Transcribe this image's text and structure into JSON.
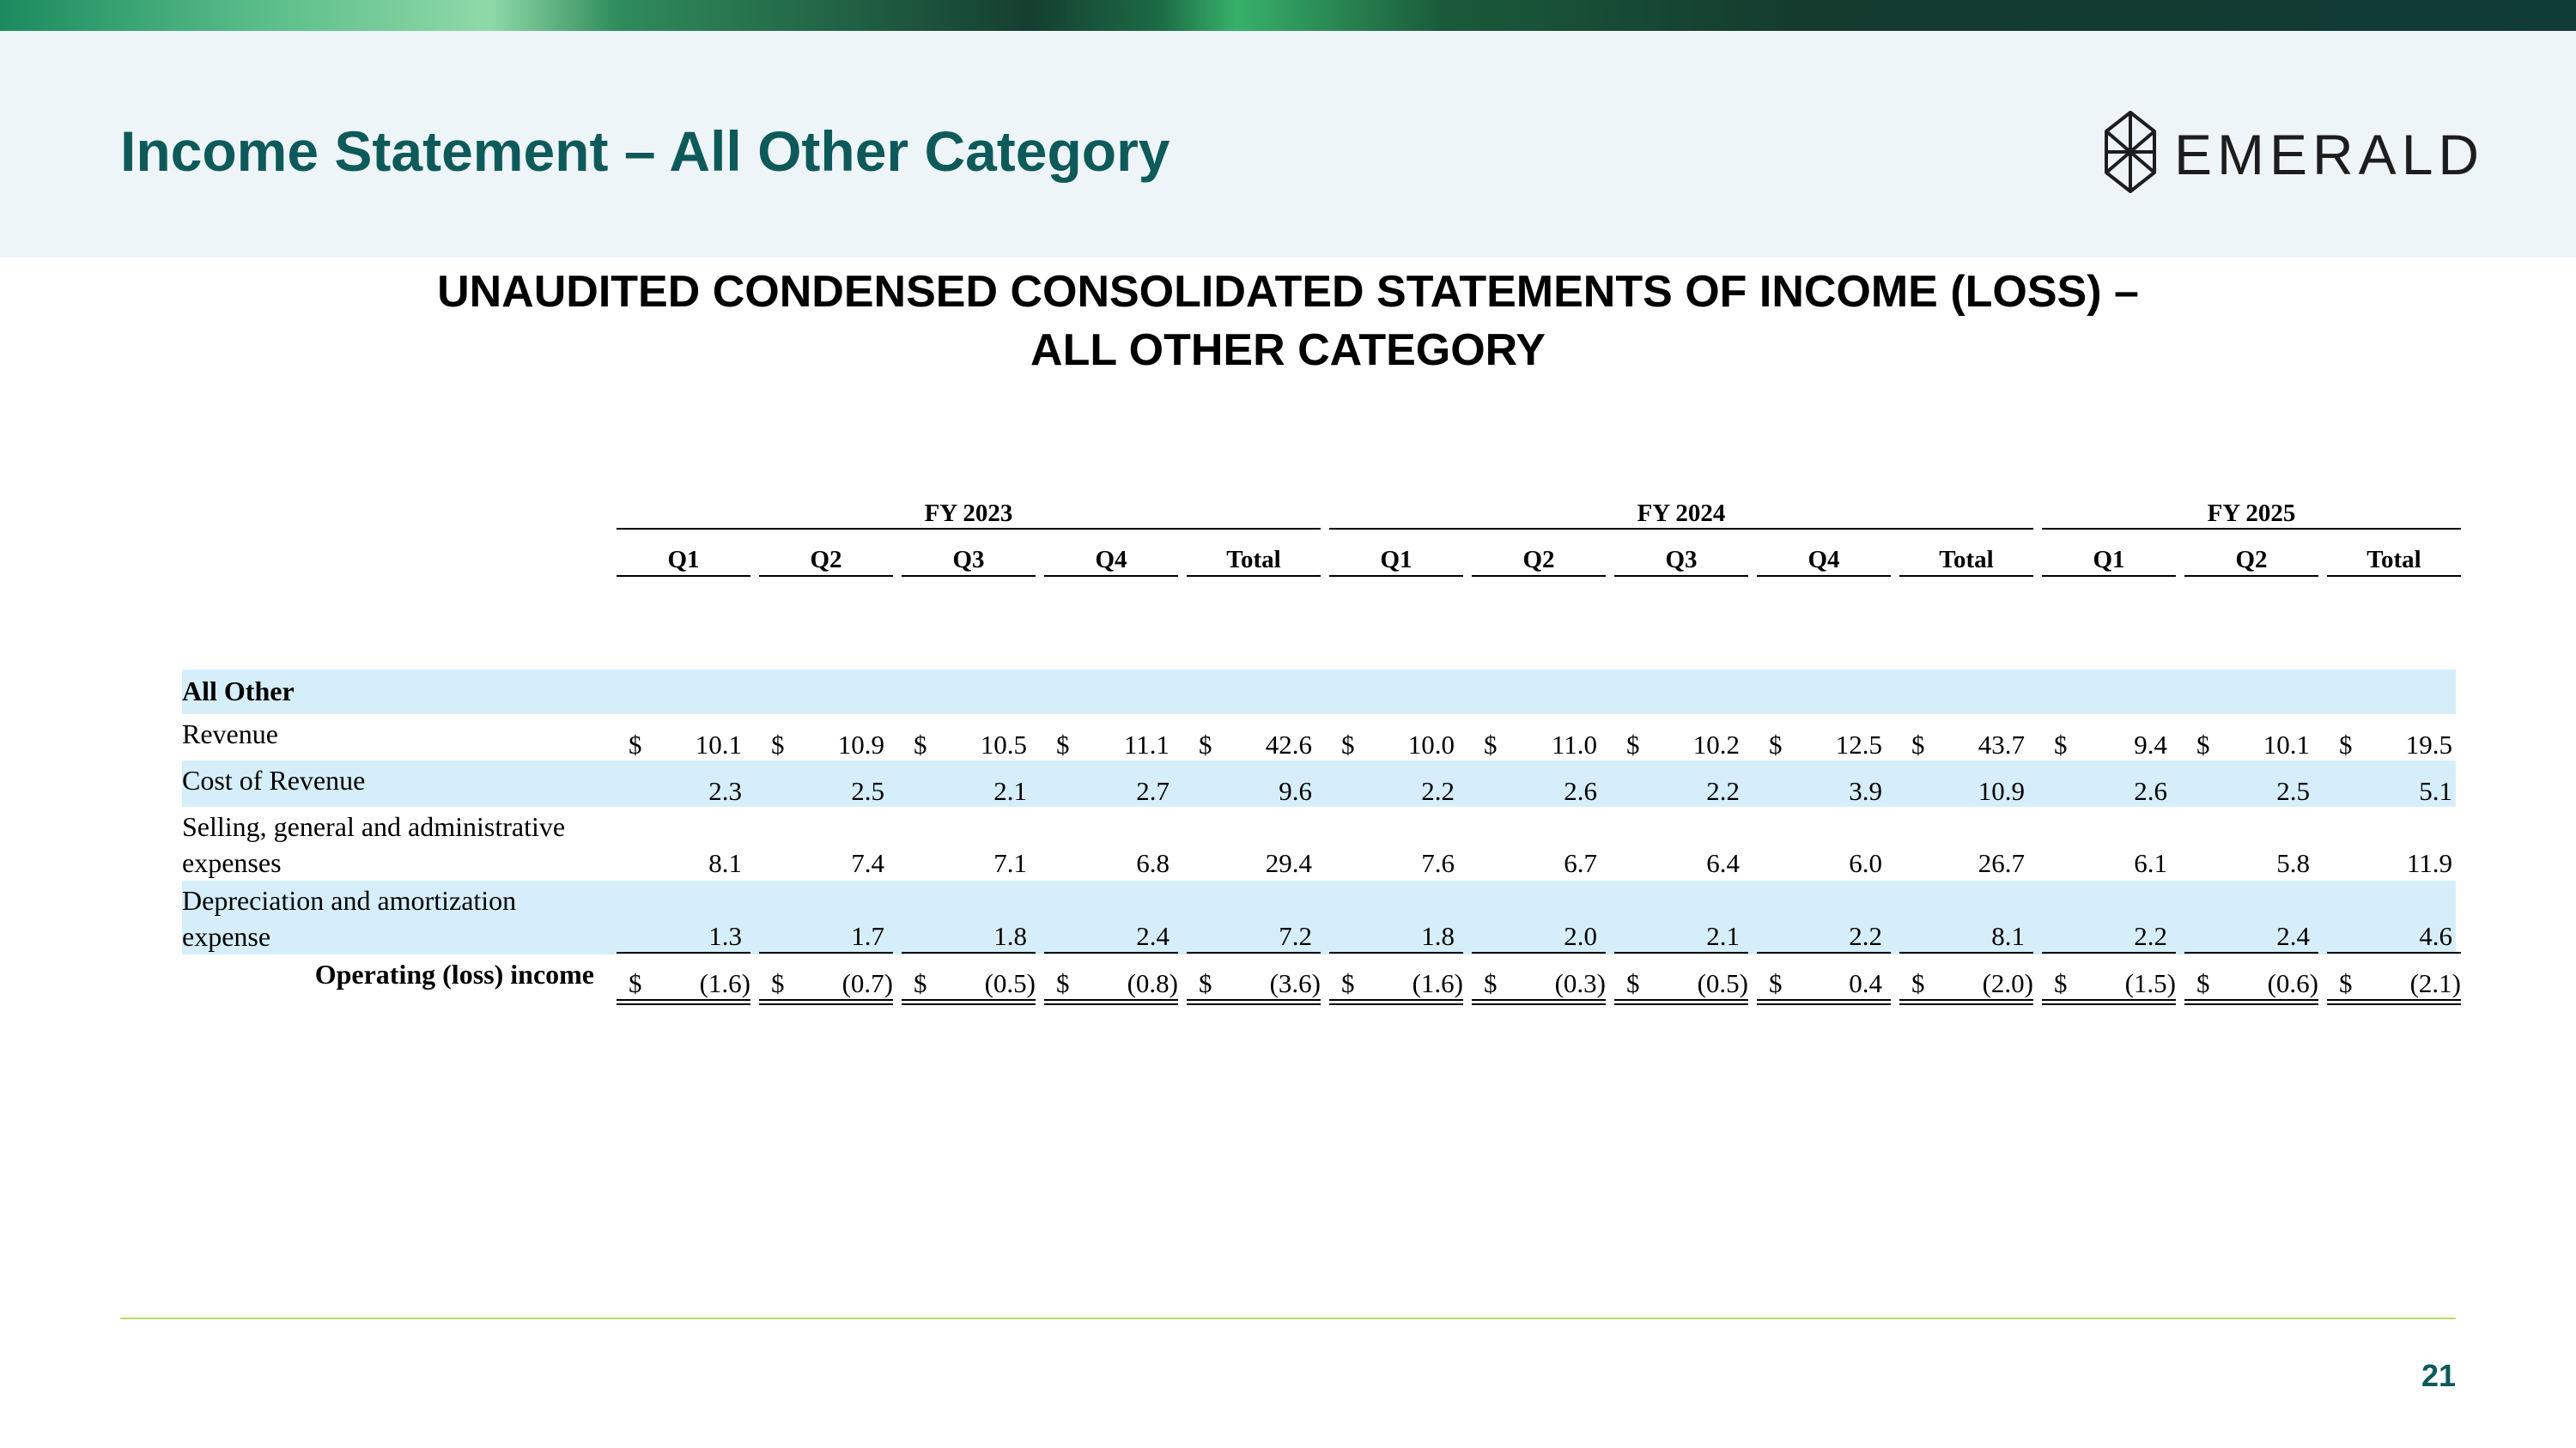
{
  "header": {
    "title": "Income Statement – All Other Category",
    "logo_text": "EMERALD"
  },
  "statement": {
    "title_line1": "UNAUDITED CONDENSED CONSOLIDATED STATEMENTS OF INCOME (LOSS) –",
    "title_line2": "ALL OTHER CATEGORY"
  },
  "table": {
    "fiscal_years": [
      "FY 2023",
      "FY 2024",
      "FY 2025"
    ],
    "columns": [
      "Q1",
      "Q2",
      "Q3",
      "Q4",
      "Total",
      "Q1",
      "Q2",
      "Q3",
      "Q4",
      "Total",
      "Q1",
      "Q2",
      "Total"
    ],
    "section_label": "All Other",
    "currency_symbol": "$",
    "rows": [
      {
        "label_lines": [
          "Revenue"
        ],
        "values": [
          "10.1",
          "10.9",
          "10.5",
          "11.1",
          "42.6",
          "10.0",
          "11.0",
          "10.2",
          "12.5",
          "43.7",
          "9.4",
          "10.1",
          "19.5"
        ],
        "dollar": true,
        "shaded": false
      },
      {
        "label_lines": [
          "Cost of Revenue"
        ],
        "values": [
          "2.3",
          "2.5",
          "2.1",
          "2.7",
          "9.6",
          "2.2",
          "2.6",
          "2.2",
          "3.9",
          "10.9",
          "2.6",
          "2.5",
          "5.1"
        ],
        "dollar": false,
        "shaded": true
      },
      {
        "label_lines": [
          "Selling, general and administrative",
          "expenses"
        ],
        "values": [
          "8.1",
          "7.4",
          "7.1",
          "6.8",
          "29.4",
          "7.6",
          "6.7",
          "6.4",
          "6.0",
          "26.7",
          "6.1",
          "5.8",
          "11.9"
        ],
        "dollar": false,
        "shaded": false
      },
      {
        "label_lines": [
          "Depreciation and amortization",
          "expense"
        ],
        "values": [
          "1.3",
          "1.7",
          "1.8",
          "2.4",
          "7.2",
          "1.8",
          "2.0",
          "2.1",
          "2.2",
          "8.1",
          "2.2",
          "2.4",
          "4.6"
        ],
        "dollar": false,
        "shaded": true
      },
      {
        "label_lines": [
          "Operating (loss) income"
        ],
        "values": [
          "(1.6)",
          "(0.7)",
          "(0.5)",
          "(0.8)",
          "(3.6)",
          "(1.6)",
          "(0.3)",
          "(0.5)",
          "0.4",
          "(2.0)",
          "(1.5)",
          "(0.6)",
          "(2.1)"
        ],
        "dollar": true,
        "shaded": false,
        "bold_label": true
      }
    ]
  },
  "footer": {
    "page_number": "21"
  },
  "colors": {
    "title": "#0e5a5a",
    "row_shade": "#d6eef9",
    "footer_rule": "#b7d96b"
  }
}
